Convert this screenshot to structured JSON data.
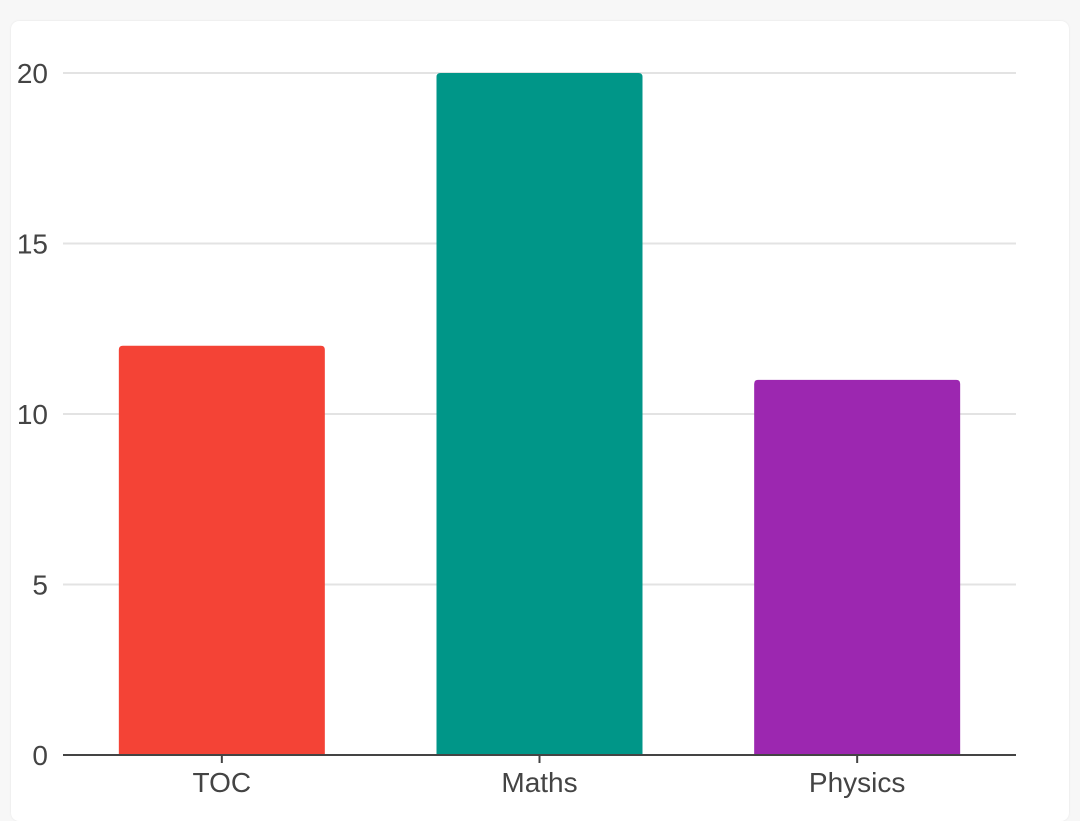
{
  "chart_data": {
    "type": "bar",
    "categories": [
      "TOC",
      "Maths",
      "Physics"
    ],
    "values": [
      12,
      20,
      11
    ],
    "colors": [
      "#f44336",
      "#009688",
      "#9c27b0"
    ],
    "ylim": [
      0,
      20
    ],
    "yticks": [
      0,
      5,
      10,
      15,
      20
    ],
    "grid": true,
    "legend": "none"
  }
}
